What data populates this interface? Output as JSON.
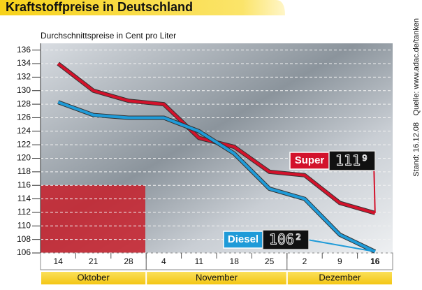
{
  "chart_data": {
    "type": "line",
    "title": "Kraftstoffpreise in Deutschland",
    "subtitle": "Durchschnittspreise in Cent pro Liter",
    "notes": [
      "Quelle: www.adac.de/tanken",
      "Stand: 16.12.08"
    ],
    "categories": [
      "14",
      "21",
      "28",
      "4",
      "11",
      "18",
      "25",
      "2",
      "9",
      "16"
    ],
    "groups": [
      {
        "label": "Oktober",
        "count": 3
      },
      {
        "label": "November",
        "count": 4
      },
      {
        "label": "Dezember",
        "count": 3
      }
    ],
    "series": [
      {
        "name": "Super",
        "color": "#d3122b",
        "values": [
          134,
          130,
          128.5,
          128,
          123,
          121.7,
          118,
          117.5,
          113.4,
          111.9
        ],
        "value_labels": [
          null,
          null,
          null,
          null,
          null,
          null,
          null,
          null,
          null,
          "111⁹"
        ]
      },
      {
        "name": "Diesel",
        "color": "#1f9bd8",
        "values": [
          128.3,
          126.4,
          126,
          126,
          124,
          120.7,
          115.5,
          114,
          108.7,
          106.2
        ],
        "value_labels": [
          null,
          null,
          null,
          null,
          null,
          null,
          null,
          null,
          null,
          "106²"
        ]
      }
    ],
    "ylim": [
      106,
      137
    ],
    "yticks": [
      106,
      108,
      110,
      112,
      114,
      116,
      118,
      120,
      122,
      124,
      126,
      128,
      130,
      132,
      134,
      136
    ],
    "grid": true
  }
}
